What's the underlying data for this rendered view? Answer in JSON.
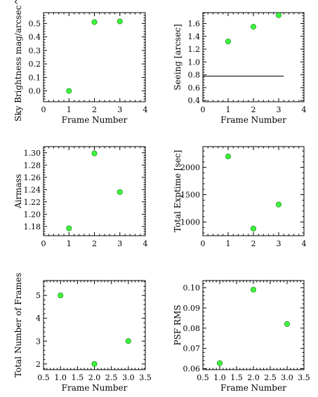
{
  "chart_data": [
    {
      "type": "scatter",
      "xlabel": "Frame Number",
      "ylabel": "Sky Brightness mag/arcsec^2",
      "xlim": [
        0,
        4
      ],
      "ylim": [
        -0.08,
        0.58
      ],
      "xticks": [
        "0",
        "1",
        "2",
        "3",
        "4"
      ],
      "yticks": [
        "0.0",
        "0.1",
        "0.2",
        "0.3",
        "0.4",
        "0.5"
      ],
      "x": [
        1,
        2,
        3
      ],
      "y": [
        0.0,
        0.51,
        0.515
      ],
      "grid": false,
      "marker_color": "#3dff3d"
    },
    {
      "type": "scatter",
      "xlabel": "Frame Number",
      "ylabel": "Seeing [arcsec]",
      "xlim": [
        0,
        4
      ],
      "ylim": [
        0.38,
        1.77
      ],
      "xticks": [
        "0",
        "1",
        "2",
        "3",
        "4"
      ],
      "yticks": [
        "0.4",
        "0.6",
        "0.8",
        "1.0",
        "1.2",
        "1.4",
        "1.6"
      ],
      "x": [
        1,
        2,
        3
      ],
      "y": [
        1.32,
        1.55,
        1.73
      ],
      "reference_line": {
        "y": 0.78,
        "x_from": 0,
        "x_to": 3.2
      },
      "grid": false,
      "marker_color": "#3dff3d"
    },
    {
      "type": "scatter",
      "xlabel": "",
      "ylabel": "Airmass",
      "xlim": [
        0,
        4
      ],
      "ylim": [
        1.165,
        1.31
      ],
      "xticks": [
        "0",
        "1",
        "2",
        "3",
        "4"
      ],
      "yticks": [
        "1.18",
        "1.20",
        "1.22",
        "1.24",
        "1.26",
        "1.28",
        "1.30"
      ],
      "x": [
        1,
        2,
        3
      ],
      "y": [
        1.177,
        1.299,
        1.236
      ],
      "grid": false,
      "marker_color": "#3dff3d"
    },
    {
      "type": "scatter",
      "xlabel": "",
      "ylabel": "Total Exptime [sec]",
      "xlim": [
        0,
        4
      ],
      "ylim": [
        750,
        2380
      ],
      "xticks": [
        "0",
        "1",
        "2",
        "3",
        "4"
      ],
      "yticks": [
        "1000",
        "1500",
        "2000"
      ],
      "x": [
        1,
        2,
        3
      ],
      "y": [
        2200,
        880,
        1320
      ],
      "grid": false,
      "marker_color": "#3dff3d"
    },
    {
      "type": "scatter",
      "xlabel": "Frame Number",
      "ylabel": "Total Number of Frames",
      "xlim": [
        0.5,
        3.5
      ],
      "ylim": [
        1.75,
        5.65
      ],
      "xticks": [
        "0.5",
        "1.0",
        "1.5",
        "2.0",
        "2.5",
        "3.0",
        "3.5"
      ],
      "yticks": [
        "2",
        "3",
        "4",
        "5"
      ],
      "x": [
        1,
        2,
        3
      ],
      "y": [
        5,
        2,
        3
      ],
      "grid": false,
      "marker_color": "#3dff3d"
    },
    {
      "type": "scatter",
      "xlabel": "Frame Number",
      "ylabel": "PSF RMS",
      "xlim": [
        0.5,
        3.5
      ],
      "ylim": [
        0.0595,
        0.1035
      ],
      "xticks": [
        "0.5",
        "1.0",
        "1.5",
        "2.0",
        "2.5",
        "3.0",
        "3.5"
      ],
      "yticks": [
        "0.06",
        "0.07",
        "0.08",
        "0.09",
        "0.10"
      ],
      "x": [
        1,
        2,
        3
      ],
      "y": [
        0.0627,
        0.099,
        0.082
      ],
      "grid": false,
      "marker_color": "#3dff3d"
    }
  ]
}
